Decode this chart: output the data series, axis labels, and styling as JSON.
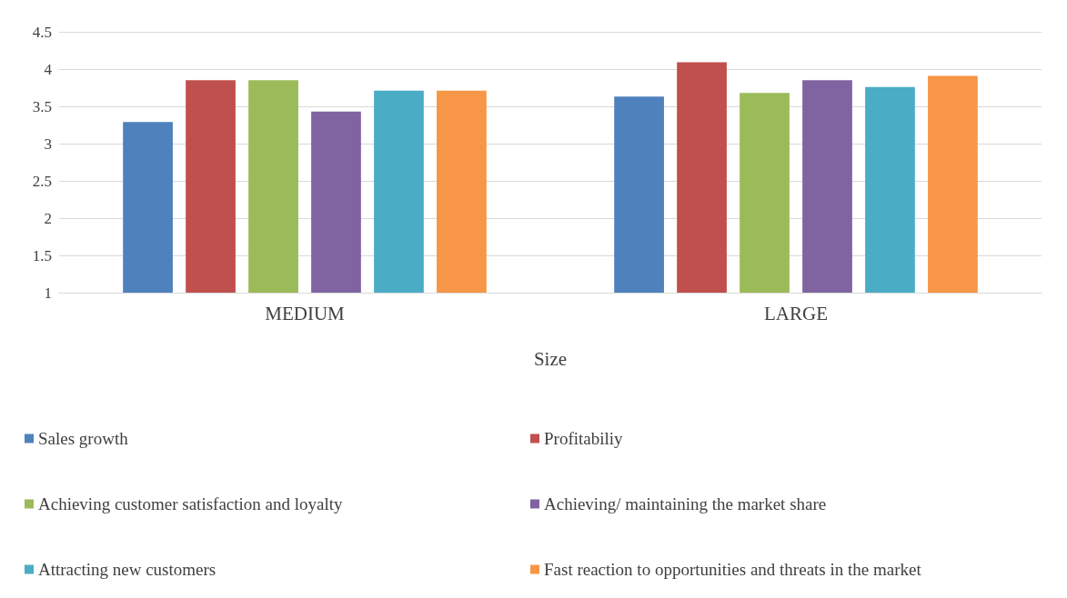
{
  "chart_data": {
    "type": "bar",
    "xlabel": "Size",
    "categories": [
      "MEDIUM",
      "LARGE"
    ],
    "series": [
      {
        "name": "Sales growth",
        "color": "#4f81bd",
        "values": [
          3.29,
          3.63
        ]
      },
      {
        "name": "Profitabiliy",
        "color": "#c0504d",
        "values": [
          3.85,
          4.09
        ]
      },
      {
        "name": "Achieving customer satisfaction and loyalty",
        "color": "#9bbb59",
        "values": [
          3.85,
          3.68
        ]
      },
      {
        "name": "Achieving/ maintaining the market share",
        "color": "#8064a2",
        "values": [
          3.43,
          3.85
        ]
      },
      {
        "name": "Attracting new customers",
        "color": "#4bacc6",
        "values": [
          3.71,
          3.76
        ]
      },
      {
        "name": "Fast reaction to opportunities and threats in the market",
        "color": "#f79646",
        "values": [
          3.71,
          3.91
        ]
      }
    ],
    "ylim": [
      1,
      4.5
    ],
    "yticks": [
      1,
      1.5,
      2,
      2.5,
      3,
      3.5,
      4,
      4.5
    ],
    "grid": "y",
    "legend": "bottom"
  }
}
